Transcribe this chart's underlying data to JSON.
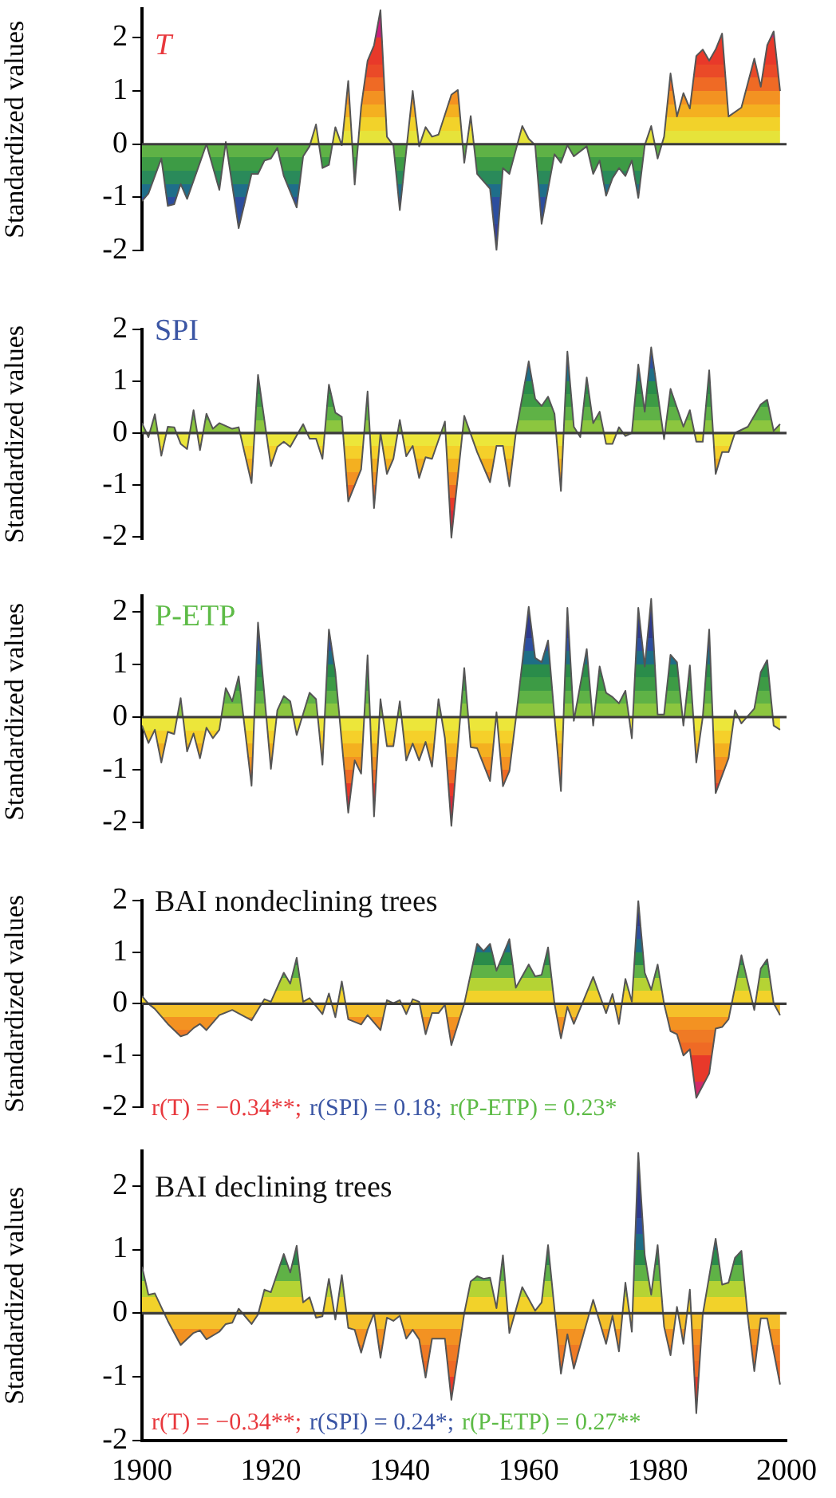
{
  "chart_data": [
    {
      "type": "area",
      "title": "T",
      "ylabel": "Standardized values",
      "xlim": [
        1900,
        2000
      ],
      "xticks": [
        1900,
        1920,
        1940,
        1960,
        1980,
        2000
      ],
      "ylim": [
        -2,
        2.55
      ],
      "yticks": [
        -2,
        -1,
        0,
        1,
        2
      ],
      "tick_labels": "y",
      "ref_lines": [
        {
          "axis": "y",
          "value": 0,
          "color": "#3c3c3c"
        }
      ],
      "series": [
        {
          "color": "#555555",
          "x": [
            1900,
            1901,
            1903,
            1904,
            1905,
            1906,
            1907,
            1910,
            1912,
            1913,
            1915,
            1917,
            1918,
            1919,
            1920,
            1921,
            1922,
            1924,
            1925,
            1926,
            1927,
            1928,
            1929,
            1930,
            1931,
            1932,
            1933,
            1934,
            1935,
            1936,
            1937,
            1938,
            1939,
            1940,
            1942,
            1943,
            1944,
            1945,
            1946,
            1948,
            1949,
            1950,
            1951,
            1952,
            1954,
            1955,
            1956,
            1957,
            1959,
            1960,
            1961,
            1962,
            1964,
            1965,
            1966,
            1967,
            1969,
            1970,
            1971,
            1972,
            1973,
            1974,
            1975,
            1976,
            1977,
            1978,
            1979,
            1980,
            1981,
            1982,
            1983,
            1984,
            1985,
            1986,
            1987,
            1988,
            1989,
            1990,
            1991,
            1993,
            1995,
            1996,
            1997,
            1998,
            1999
          ],
          "values": [
            -1.07,
            -0.93,
            -0.27,
            -1.16,
            -1.13,
            -0.75,
            -1.03,
            0,
            -0.86,
            0.04,
            -1.58,
            -0.56,
            -0.56,
            -0.31,
            -0.27,
            -0.07,
            -0.6,
            -1.19,
            -0.23,
            -0.04,
            0.37,
            -0.45,
            -0.39,
            0.32,
            -0.02,
            1.19,
            -0.76,
            0.7,
            1.57,
            1.86,
            2.52,
            0.14,
            -0.02,
            -1.24,
            1.0,
            -0.04,
            0.32,
            0.14,
            0.18,
            0.93,
            1.02,
            -0.35,
            0.53,
            -0.56,
            -0.84,
            -1.99,
            -0.45,
            -0.56,
            0.34,
            0.1,
            -0.02,
            -1.5,
            -0.19,
            -0.35,
            -0.02,
            -0.23,
            -0.04,
            -0.56,
            -0.31,
            -0.97,
            -0.64,
            -0.45,
            -0.6,
            -0.31,
            -1.01,
            -0.02,
            0.34,
            -0.27,
            0.14,
            1.33,
            0.52,
            0.96,
            0.67,
            1.66,
            1.78,
            1.57,
            1.78,
            2.08,
            0.52,
            0.69,
            1.61,
            1.08,
            1.86,
            2.12,
            1.0
          ]
        }
      ]
    },
    {
      "type": "area",
      "title": "SPI",
      "ylabel": "Standardized values",
      "xlim": [
        1900,
        2000
      ],
      "xticks": [
        1900,
        1920,
        1940,
        1960,
        1980,
        2000
      ],
      "ylim": [
        -2.05,
        2
      ],
      "yticks": [
        -2,
        -1,
        0,
        1,
        2
      ],
      "tick_labels": "y",
      "ref_lines": [
        {
          "axis": "y",
          "value": 0,
          "color": "#3c3c3c"
        }
      ],
      "series": [
        {
          "color": "#555555",
          "x": [
            1900,
            1901,
            1902,
            1903,
            1904,
            1905,
            1906,
            1907,
            1908,
            1909,
            1910,
            1911,
            1912,
            1914,
            1915,
            1917,
            1918,
            1920,
            1921,
            1922,
            1923,
            1925,
            1926,
            1927,
            1928,
            1929,
            1930,
            1931,
            1932,
            1934,
            1935,
            1936,
            1937,
            1938,
            1939,
            1940,
            1941,
            1942,
            1943,
            1944,
            1945,
            1947,
            1948,
            1950,
            1952,
            1954,
            1955,
            1956,
            1957,
            1958,
            1960,
            1961,
            1962,
            1963,
            1964,
            1965,
            1966,
            1967,
            1968,
            1969,
            1970,
            1971,
            1972,
            1973,
            1974,
            1975,
            1976,
            1977,
            1978,
            1979,
            1981,
            1982,
            1984,
            1985,
            1986,
            1987,
            1988,
            1989,
            1990,
            1991,
            1992,
            1994,
            1996,
            1997,
            1998,
            1999
          ],
          "values": [
            0.19,
            -0.08,
            0.36,
            -0.44,
            0.12,
            0.11,
            -0.21,
            -0.31,
            0.44,
            -0.33,
            0.37,
            0.08,
            0.19,
            0.08,
            0.11,
            -0.97,
            1.12,
            -0.64,
            -0.27,
            -0.17,
            -0.27,
            0.17,
            -0.11,
            -0.11,
            -0.5,
            0.93,
            0.39,
            0.31,
            -1.32,
            -0.7,
            0.8,
            -1.45,
            0,
            -0.79,
            -0.5,
            0.25,
            -0.45,
            -0.25,
            -0.87,
            -0.47,
            -0.5,
            0.22,
            -2.02,
            0.33,
            -0.37,
            -0.95,
            -0.25,
            -0.25,
            -1.03,
            0,
            1.38,
            0.66,
            0.52,
            0.7,
            0.37,
            -1.12,
            1.57,
            0.12,
            -0.08,
            1.07,
            0.19,
            0.41,
            -0.21,
            -0.21,
            0.11,
            -0.06,
            0,
            1.32,
            0.41,
            1.65,
            -0.12,
            0.85,
            0.12,
            0.44,
            -0.17,
            -0.17,
            1.21,
            -0.79,
            -0.37,
            -0.37,
            0,
            0.12,
            0.55,
            0.64,
            0.04,
            0.17
          ]
        }
      ]
    },
    {
      "type": "area",
      "title": "P-ETP",
      "ylabel": "Standardized values",
      "xlim": [
        1900,
        2000
      ],
      "xticks": [
        1900,
        1920,
        1940,
        1960,
        1980,
        2000
      ],
      "ylim": [
        -2.1,
        2.3
      ],
      "yticks": [
        -2,
        -1,
        0,
        1,
        2
      ],
      "tick_labels": "y",
      "ref_lines": [
        {
          "axis": "y",
          "value": 0,
          "color": "#3c3c3c"
        }
      ],
      "series": [
        {
          "color": "#555555",
          "x": [
            1900,
            1901,
            1902,
            1903,
            1904,
            1905,
            1906,
            1907,
            1908,
            1909,
            1910,
            1911,
            1912,
            1913,
            1914,
            1915,
            1917,
            1918,
            1920,
            1921,
            1922,
            1923,
            1924,
            1926,
            1927,
            1928,
            1929,
            1930,
            1932,
            1933,
            1934,
            1935,
            1936,
            1937,
            1938,
            1939,
            1940,
            1941,
            1942,
            1943,
            1944,
            1945,
            1946,
            1947,
            1948,
            1950,
            1951,
            1952,
            1954,
            1955,
            1956,
            1957,
            1958,
            1960,
            1961,
            1962,
            1963,
            1964,
            1965,
            1966,
            1967,
            1969,
            1970,
            1971,
            1972,
            1973,
            1974,
            1975,
            1976,
            1977,
            1978,
            1979,
            1980,
            1981,
            1982,
            1983,
            1984,
            1985,
            1986,
            1987,
            1988,
            1989,
            1991,
            1992,
            1993,
            1995,
            1996,
            1997,
            1998,
            1999
          ],
          "values": [
            -0.16,
            -0.49,
            -0.24,
            -0.86,
            -0.28,
            -0.32,
            0.36,
            -0.65,
            -0.31,
            -0.78,
            -0.2,
            -0.4,
            -0.24,
            0.55,
            0.3,
            0.77,
            -1.3,
            1.79,
            -0.98,
            0.13,
            0.4,
            0.3,
            -0.34,
            0.46,
            0.34,
            -0.9,
            1.66,
            0.85,
            -1.81,
            -0.82,
            -1.07,
            1.17,
            -1.88,
            0.34,
            -0.55,
            -0.55,
            0.3,
            -0.82,
            -0.5,
            -0.82,
            -0.47,
            -0.94,
            0.34,
            -0.4,
            -2.06,
            0.93,
            -0.57,
            -0.59,
            -1.21,
            0.09,
            -1.31,
            -1.02,
            -0.03,
            2.09,
            1.12,
            1.04,
            1.45,
            0,
            -1.4,
            2.07,
            -0.07,
            1.29,
            -0.16,
            0.96,
            0.46,
            0.38,
            0.26,
            0.5,
            -0.4,
            2.07,
            0.96,
            2.24,
            0.05,
            0.05,
            1.18,
            1.04,
            -0.16,
            0.98,
            -0.86,
            0,
            1.66,
            -1.44,
            -0.78,
            0.13,
            -0.12,
            0.16,
            0.85,
            1.08,
            -0.16,
            -0.24
          ]
        }
      ]
    },
    {
      "type": "area",
      "title": "BAI nondeclining trees",
      "ylabel": "Standardized values",
      "xlim": [
        1900,
        2000
      ],
      "xticks": [
        1900,
        1920,
        1940,
        1960,
        1980,
        2000
      ],
      "ylim": [
        -2,
        2
      ],
      "yticks": [
        -2,
        -1,
        0,
        1,
        2
      ],
      "tick_labels": "y",
      "ref_lines": [
        {
          "axis": "y",
          "value": 0,
          "color": "#3c3c3c"
        }
      ],
      "annotations": [
        "r(T) = −0.34**;",
        "r(SPI) = 0.18;",
        "r(P-ETP) = 0.23*"
      ],
      "series": [
        {
          "color": "#555555",
          "x": [
            1900,
            1901,
            1902,
            1904,
            1906,
            1907,
            1908,
            1909,
            1910,
            1912,
            1914,
            1917,
            1919,
            1920,
            1922,
            1923,
            1924,
            1925,
            1926,
            1928,
            1929,
            1930,
            1931,
            1932,
            1934,
            1935,
            1937,
            1938,
            1939,
            1940,
            1941,
            1942,
            1943,
            1944,
            1945,
            1946,
            1947,
            1948,
            1950,
            1952,
            1953,
            1954,
            1955,
            1957,
            1958,
            1960,
            1961,
            1962,
            1963,
            1964,
            1965,
            1966,
            1967,
            1970,
            1972,
            1973,
            1974,
            1975,
            1976,
            1977,
            1978,
            1979,
            1980,
            1981,
            1982,
            1983,
            1984,
            1985,
            1986,
            1988,
            1989,
            1990,
            1991,
            1993,
            1995,
            1996,
            1997,
            1998,
            1999
          ],
          "values": [
            0.15,
            0,
            -0.1,
            -0.39,
            -0.63,
            -0.59,
            -0.47,
            -0.39,
            -0.51,
            -0.22,
            -0.12,
            -0.32,
            0.09,
            0.04,
            0.6,
            0.39,
            0.89,
            0.04,
            0.11,
            -0.2,
            0.2,
            -0.26,
            0.43,
            -0.3,
            -0.4,
            -0.22,
            -0.51,
            0.07,
            0.01,
            0.07,
            -0.2,
            0.09,
            0.04,
            -0.59,
            -0.18,
            -0.18,
            -0.02,
            -0.8,
            0,
            1.16,
            1.02,
            1.16,
            0.64,
            1.25,
            0.31,
            0.76,
            0.53,
            0.56,
            1.09,
            0,
            -0.67,
            -0.06,
            -0.39,
            0.52,
            -0.18,
            0.19,
            -0.39,
            0.48,
            0.04,
            1.99,
            0.6,
            0.27,
            0.76,
            0,
            -0.53,
            -0.59,
            -1,
            -0.88,
            -1.82,
            -1.35,
            -0.48,
            -0.45,
            -0.3,
            0.94,
            -0.12,
            0.68,
            0.86,
            0.01,
            -0.22
          ]
        }
      ]
    },
    {
      "type": "area",
      "title": "BAI declining trees",
      "ylabel": "Standardized values",
      "xlim": [
        1900,
        2000
      ],
      "xticks": [
        1900,
        1920,
        1940,
        1960,
        1980,
        2000
      ],
      "ylim": [
        -2,
        2.55
      ],
      "yticks": [
        -2,
        -1,
        0,
        1,
        2
      ],
      "ref_lines": [
        {
          "axis": "y",
          "value": 0,
          "color": "#3c3c3c"
        }
      ],
      "annotations": [
        "r(T) = −0.34**;",
        "r(SPI) = 0.24*;",
        "r(P-ETP) = 0.27**"
      ],
      "series": [
        {
          "color": "#555555",
          "x": [
            1900,
            1901,
            1902,
            1904,
            1906,
            1908,
            1909,
            1910,
            1912,
            1913,
            1914,
            1915,
            1917,
            1918,
            1919,
            1920,
            1922,
            1923,
            1924,
            1925,
            1926,
            1927,
            1928,
            1929,
            1930,
            1931,
            1932,
            1933,
            1934,
            1935,
            1936,
            1937,
            1938,
            1939,
            1940,
            1941,
            1942,
            1943,
            1944,
            1945,
            1947,
            1948,
            1950,
            1951,
            1952,
            1953,
            1954,
            1955,
            1956,
            1957,
            1959,
            1961,
            1962,
            1963,
            1965,
            1966,
            1967,
            1970,
            1972,
            1973,
            1974,
            1975,
            1976,
            1977,
            1978,
            1979,
            1980,
            1981,
            1982,
            1983,
            1984,
            1985,
            1986,
            1987,
            1989,
            1990,
            1991,
            1992,
            1993,
            1994,
            1995,
            1996,
            1997,
            1999
          ],
          "values": [
            0.73,
            0.29,
            0.31,
            -0.12,
            -0.5,
            -0.31,
            -0.27,
            -0.41,
            -0.29,
            -0.17,
            -0.15,
            0.07,
            -0.17,
            -0.02,
            0.37,
            0.33,
            0.93,
            0.64,
            1.06,
            0.17,
            0.25,
            -0.07,
            -0.05,
            0.54,
            -0.1,
            0.6,
            -0.23,
            -0.26,
            -0.62,
            -0.26,
            0,
            -0.7,
            -0.07,
            -0.12,
            -0.04,
            -0.4,
            -0.26,
            -0.41,
            -1.01,
            -0.4,
            -0.4,
            -1.36,
            0,
            0.5,
            0.58,
            0.54,
            0.56,
            0.08,
            0.91,
            -0.31,
            0.41,
            0.04,
            0.17,
            1.07,
            -0.95,
            -0.33,
            -0.87,
            0.21,
            -0.48,
            -0.04,
            -0.6,
            0.48,
            -0.29,
            2.52,
            0.91,
            0.29,
            1.07,
            -0.21,
            -0.66,
            0.1,
            -0.48,
            0.37,
            -1.57,
            -0.02,
            1.17,
            0.45,
            0.48,
            0.87,
            0.98,
            -0.07,
            -0.91,
            -0.08,
            -0.08,
            -1.12
          ]
        }
      ]
    }
  ]
}
